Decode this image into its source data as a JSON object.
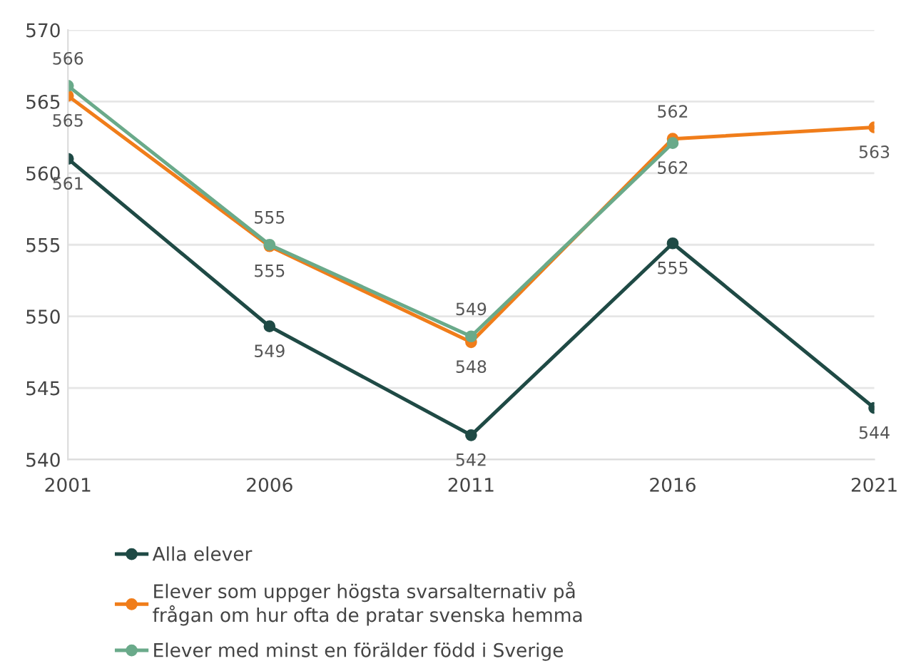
{
  "chart_data": {
    "type": "line",
    "x": [
      2001,
      2006,
      2011,
      2016,
      2021
    ],
    "xlim": [
      2001,
      2021
    ],
    "xticks": [
      2001,
      2006,
      2011,
      2016,
      2021
    ],
    "ylim": [
      540,
      570
    ],
    "yticks": [
      540,
      545,
      550,
      555,
      560,
      565,
      570
    ],
    "grid": "y",
    "legend": "bottom",
    "marker": "circle",
    "line_style": "solid",
    "series": [
      {
        "name": "Alla elever",
        "color": "#1f4a45",
        "values": [
          561.0,
          549.3,
          541.7,
          555.1,
          543.6
        ],
        "value_labels": [
          "561",
          "549",
          "542",
          "555",
          "544"
        ]
      },
      {
        "name": "Elever som uppger högsta svarsalternativ på\nfrågan om hur ofta de pratar svenska hemma",
        "color": "#f07d1a",
        "values": [
          565.4,
          554.9,
          548.2,
          562.4,
          563.2
        ],
        "value_labels": [
          "565",
          "555",
          "548",
          "562",
          "563"
        ]
      },
      {
        "name": "Elever med minst en förälder född i Sverige",
        "color": "#6aaa8a",
        "values": [
          566.1,
          555.0,
          548.6,
          562.1,
          null
        ],
        "value_labels": [
          "566",
          "555",
          "549",
          "562",
          null
        ]
      }
    ]
  }
}
